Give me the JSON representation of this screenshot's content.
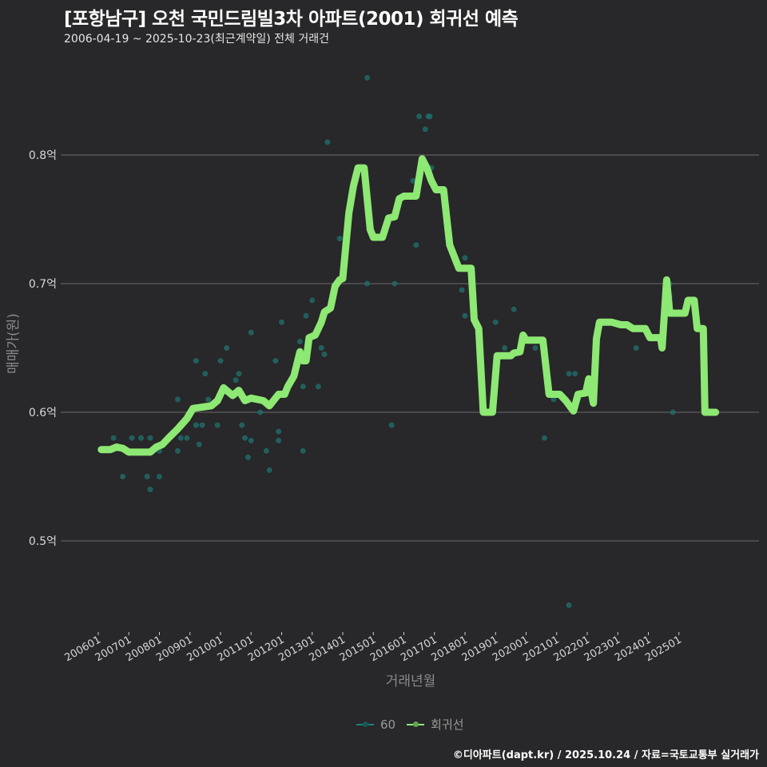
{
  "header": {
    "title": "[포항남구] 오천 국민드림빌3차 아파트(2001) 회귀선 예측",
    "subtitle": "2006-04-19 ~ 2025-10-23(최근계약일) 전체 거래건"
  },
  "legend": {
    "items": [
      {
        "label": "60",
        "color": "#1f7f7a"
      },
      {
        "label": "회귀선",
        "color": "#8de874"
      }
    ]
  },
  "footer": {
    "credit": "©디아파트(dapt.kr) / 2025.10.24 / 자료=국토교통부 실거래가"
  },
  "colors": {
    "background": "#282729",
    "grid": "#6a6a6a",
    "scatter": "#1f6e6a",
    "regression": "#8de874"
  },
  "chart_data": {
    "type": "scatter",
    "title": "[포항남구] 오천 국민드림빌3차 아파트(2001) 회귀선 예측",
    "subtitle": "2006-04-19 ~ 2025-10-23(최근계약일) 전체 거래건",
    "xlabel": "거래년월",
    "ylabel": "매매가(원)",
    "ylim": [
      0.43,
      0.87
    ],
    "yticks": [
      0.5,
      0.6,
      0.7,
      0.8
    ],
    "ytick_labels": [
      "0.5억",
      "0.6억",
      "0.7억",
      "0.8억"
    ],
    "xticks": [
      "200601",
      "200701",
      "200801",
      "200901",
      "201001",
      "201101",
      "201201",
      "201301",
      "201401",
      "201501",
      "201601",
      "201701",
      "201801",
      "201901",
      "202001",
      "202101",
      "202201",
      "202301",
      "202401",
      "202501"
    ],
    "grid": true,
    "legend_position": "bottom",
    "series": [
      {
        "name": "60",
        "kind": "scatter",
        "points": [
          [
            2006.5,
            0.58
          ],
          [
            2006.8,
            0.55
          ],
          [
            2007.1,
            0.58
          ],
          [
            2007.4,
            0.58
          ],
          [
            2007.6,
            0.55
          ],
          [
            2007.7,
            0.54
          ],
          [
            2007.7,
            0.58
          ],
          [
            2008.0,
            0.55
          ],
          [
            2008.0,
            0.57
          ],
          [
            2008.6,
            0.61
          ],
          [
            2008.6,
            0.57
          ],
          [
            2008.7,
            0.58
          ],
          [
            2008.9,
            0.58
          ],
          [
            2009.2,
            0.64
          ],
          [
            2009.2,
            0.59
          ],
          [
            2009.3,
            0.575
          ],
          [
            2009.4,
            0.59
          ],
          [
            2009.5,
            0.63
          ],
          [
            2009.6,
            0.61
          ],
          [
            2009.9,
            0.59
          ],
          [
            2010.0,
            0.64
          ],
          [
            2010.2,
            0.65
          ],
          [
            2010.5,
            0.625
          ],
          [
            2010.6,
            0.63
          ],
          [
            2010.7,
            0.59
          ],
          [
            2010.8,
            0.58
          ],
          [
            2010.9,
            0.565
          ],
          [
            2011.0,
            0.662
          ],
          [
            2011.0,
            0.578
          ],
          [
            2011.3,
            0.6
          ],
          [
            2011.5,
            0.57
          ],
          [
            2011.6,
            0.555
          ],
          [
            2011.8,
            0.64
          ],
          [
            2011.9,
            0.578
          ],
          [
            2011.9,
            0.585
          ],
          [
            2012.0,
            0.67
          ],
          [
            2012.6,
            0.655
          ],
          [
            2012.7,
            0.62
          ],
          [
            2012.7,
            0.57
          ],
          [
            2012.8,
            0.675
          ],
          [
            2013.0,
            0.687
          ],
          [
            2013.2,
            0.62
          ],
          [
            2013.3,
            0.65
          ],
          [
            2013.4,
            0.645
          ],
          [
            2013.5,
            0.81
          ],
          [
            2013.9,
            0.735
          ],
          [
            2014.8,
            0.7
          ],
          [
            2014.8,
            0.86
          ],
          [
            2015.6,
            0.59
          ],
          [
            2015.7,
            0.7
          ],
          [
            2015.8,
            0.765
          ],
          [
            2016.3,
            0.78
          ],
          [
            2016.4,
            0.73
          ],
          [
            2016.5,
            0.83
          ],
          [
            2016.7,
            0.82
          ],
          [
            2016.8,
            0.83
          ],
          [
            2016.85,
            0.83
          ],
          [
            2016.9,
            0.79
          ],
          [
            2017.7,
            0.72
          ],
          [
            2017.9,
            0.695
          ],
          [
            2018.0,
            0.72
          ],
          [
            2018.0,
            0.675
          ],
          [
            2018.7,
            0.6
          ],
          [
            2019.0,
            0.67
          ],
          [
            2019.3,
            0.65
          ],
          [
            2019.6,
            0.68
          ],
          [
            2019.9,
            0.655
          ],
          [
            2020.3,
            0.65
          ],
          [
            2020.6,
            0.58
          ],
          [
            2020.9,
            0.61
          ],
          [
            2021.4,
            0.63
          ],
          [
            2021.6,
            0.63
          ],
          [
            2021.4,
            0.45
          ],
          [
            2021.7,
            0.61
          ],
          [
            2023.6,
            0.65
          ],
          [
            2024.7,
            0.7
          ],
          [
            2024.7,
            0.69
          ],
          [
            2024.8,
            0.6
          ]
        ]
      },
      {
        "name": "회귀선",
        "kind": "line",
        "points": [
          [
            2006.1,
            0.571
          ],
          [
            2006.4,
            0.571
          ],
          [
            2006.6,
            0.573
          ],
          [
            2006.8,
            0.572
          ],
          [
            2007.0,
            0.569
          ],
          [
            2007.3,
            0.569
          ],
          [
            2007.7,
            0.569
          ],
          [
            2007.9,
            0.573
          ],
          [
            2008.1,
            0.575
          ],
          [
            2008.3,
            0.58
          ],
          [
            2008.6,
            0.587
          ],
          [
            2008.9,
            0.595
          ],
          [
            2009.1,
            0.603
          ],
          [
            2009.4,
            0.604
          ],
          [
            2009.7,
            0.605
          ],
          [
            2009.9,
            0.609
          ],
          [
            2010.1,
            0.619
          ],
          [
            2010.4,
            0.613
          ],
          [
            2010.6,
            0.617
          ],
          [
            2010.8,
            0.609
          ],
          [
            2011.0,
            0.611
          ],
          [
            2011.2,
            0.61
          ],
          [
            2011.4,
            0.609
          ],
          [
            2011.6,
            0.605
          ],
          [
            2011.9,
            0.614
          ],
          [
            2012.1,
            0.614
          ],
          [
            2012.2,
            0.62
          ],
          [
            2012.4,
            0.628
          ],
          [
            2012.6,
            0.647
          ],
          [
            2012.7,
            0.64
          ],
          [
            2012.8,
            0.64
          ],
          [
            2012.9,
            0.658
          ],
          [
            2013.1,
            0.66
          ],
          [
            2013.3,
            0.67
          ],
          [
            2013.4,
            0.678
          ],
          [
            2013.6,
            0.681
          ],
          [
            2013.75,
            0.698
          ],
          [
            2013.9,
            0.703
          ],
          [
            2014.0,
            0.704
          ],
          [
            2014.2,
            0.755
          ],
          [
            2014.35,
            0.776
          ],
          [
            2014.5,
            0.79
          ],
          [
            2014.7,
            0.79
          ],
          [
            2014.9,
            0.742
          ],
          [
            2015.0,
            0.736
          ],
          [
            2015.3,
            0.736
          ],
          [
            2015.5,
            0.751
          ],
          [
            2015.7,
            0.752
          ],
          [
            2015.85,
            0.766
          ],
          [
            2016.0,
            0.768
          ],
          [
            2016.4,
            0.768
          ],
          [
            2016.6,
            0.797
          ],
          [
            2016.75,
            0.79
          ],
          [
            2016.9,
            0.78
          ],
          [
            2017.05,
            0.773
          ],
          [
            2017.3,
            0.773
          ],
          [
            2017.5,
            0.73
          ],
          [
            2017.6,
            0.724
          ],
          [
            2017.8,
            0.712
          ],
          [
            2018.2,
            0.712
          ],
          [
            2018.3,
            0.672
          ],
          [
            2018.45,
            0.665
          ],
          [
            2018.6,
            0.6
          ],
          [
            2018.9,
            0.6
          ],
          [
            2019.05,
            0.644
          ],
          [
            2019.5,
            0.644
          ],
          [
            2019.6,
            0.646
          ],
          [
            2019.8,
            0.647
          ],
          [
            2019.9,
            0.66
          ],
          [
            2020.0,
            0.656
          ],
          [
            2020.55,
            0.656
          ],
          [
            2020.75,
            0.614
          ],
          [
            2021.1,
            0.614
          ],
          [
            2021.3,
            0.609
          ],
          [
            2021.55,
            0.601
          ],
          [
            2021.7,
            0.614
          ],
          [
            2021.95,
            0.615
          ],
          [
            2022.05,
            0.626
          ],
          [
            2022.2,
            0.607
          ],
          [
            2022.3,
            0.657
          ],
          [
            2022.4,
            0.67
          ],
          [
            2022.8,
            0.67
          ],
          [
            2023.1,
            0.668
          ],
          [
            2023.3,
            0.668
          ],
          [
            2023.5,
            0.665
          ],
          [
            2023.9,
            0.665
          ],
          [
            2024.05,
            0.658
          ],
          [
            2024.4,
            0.658
          ],
          [
            2024.45,
            0.65
          ],
          [
            2024.6,
            0.703
          ],
          [
            2024.7,
            0.677
          ],
          [
            2025.0,
            0.677
          ],
          [
            2025.2,
            0.677
          ],
          [
            2025.3,
            0.687
          ],
          [
            2025.5,
            0.687
          ],
          [
            2025.6,
            0.665
          ],
          [
            2025.8,
            0.665
          ],
          [
            2025.85,
            0.6
          ],
          [
            2026.2,
            0.6
          ]
        ]
      }
    ]
  }
}
